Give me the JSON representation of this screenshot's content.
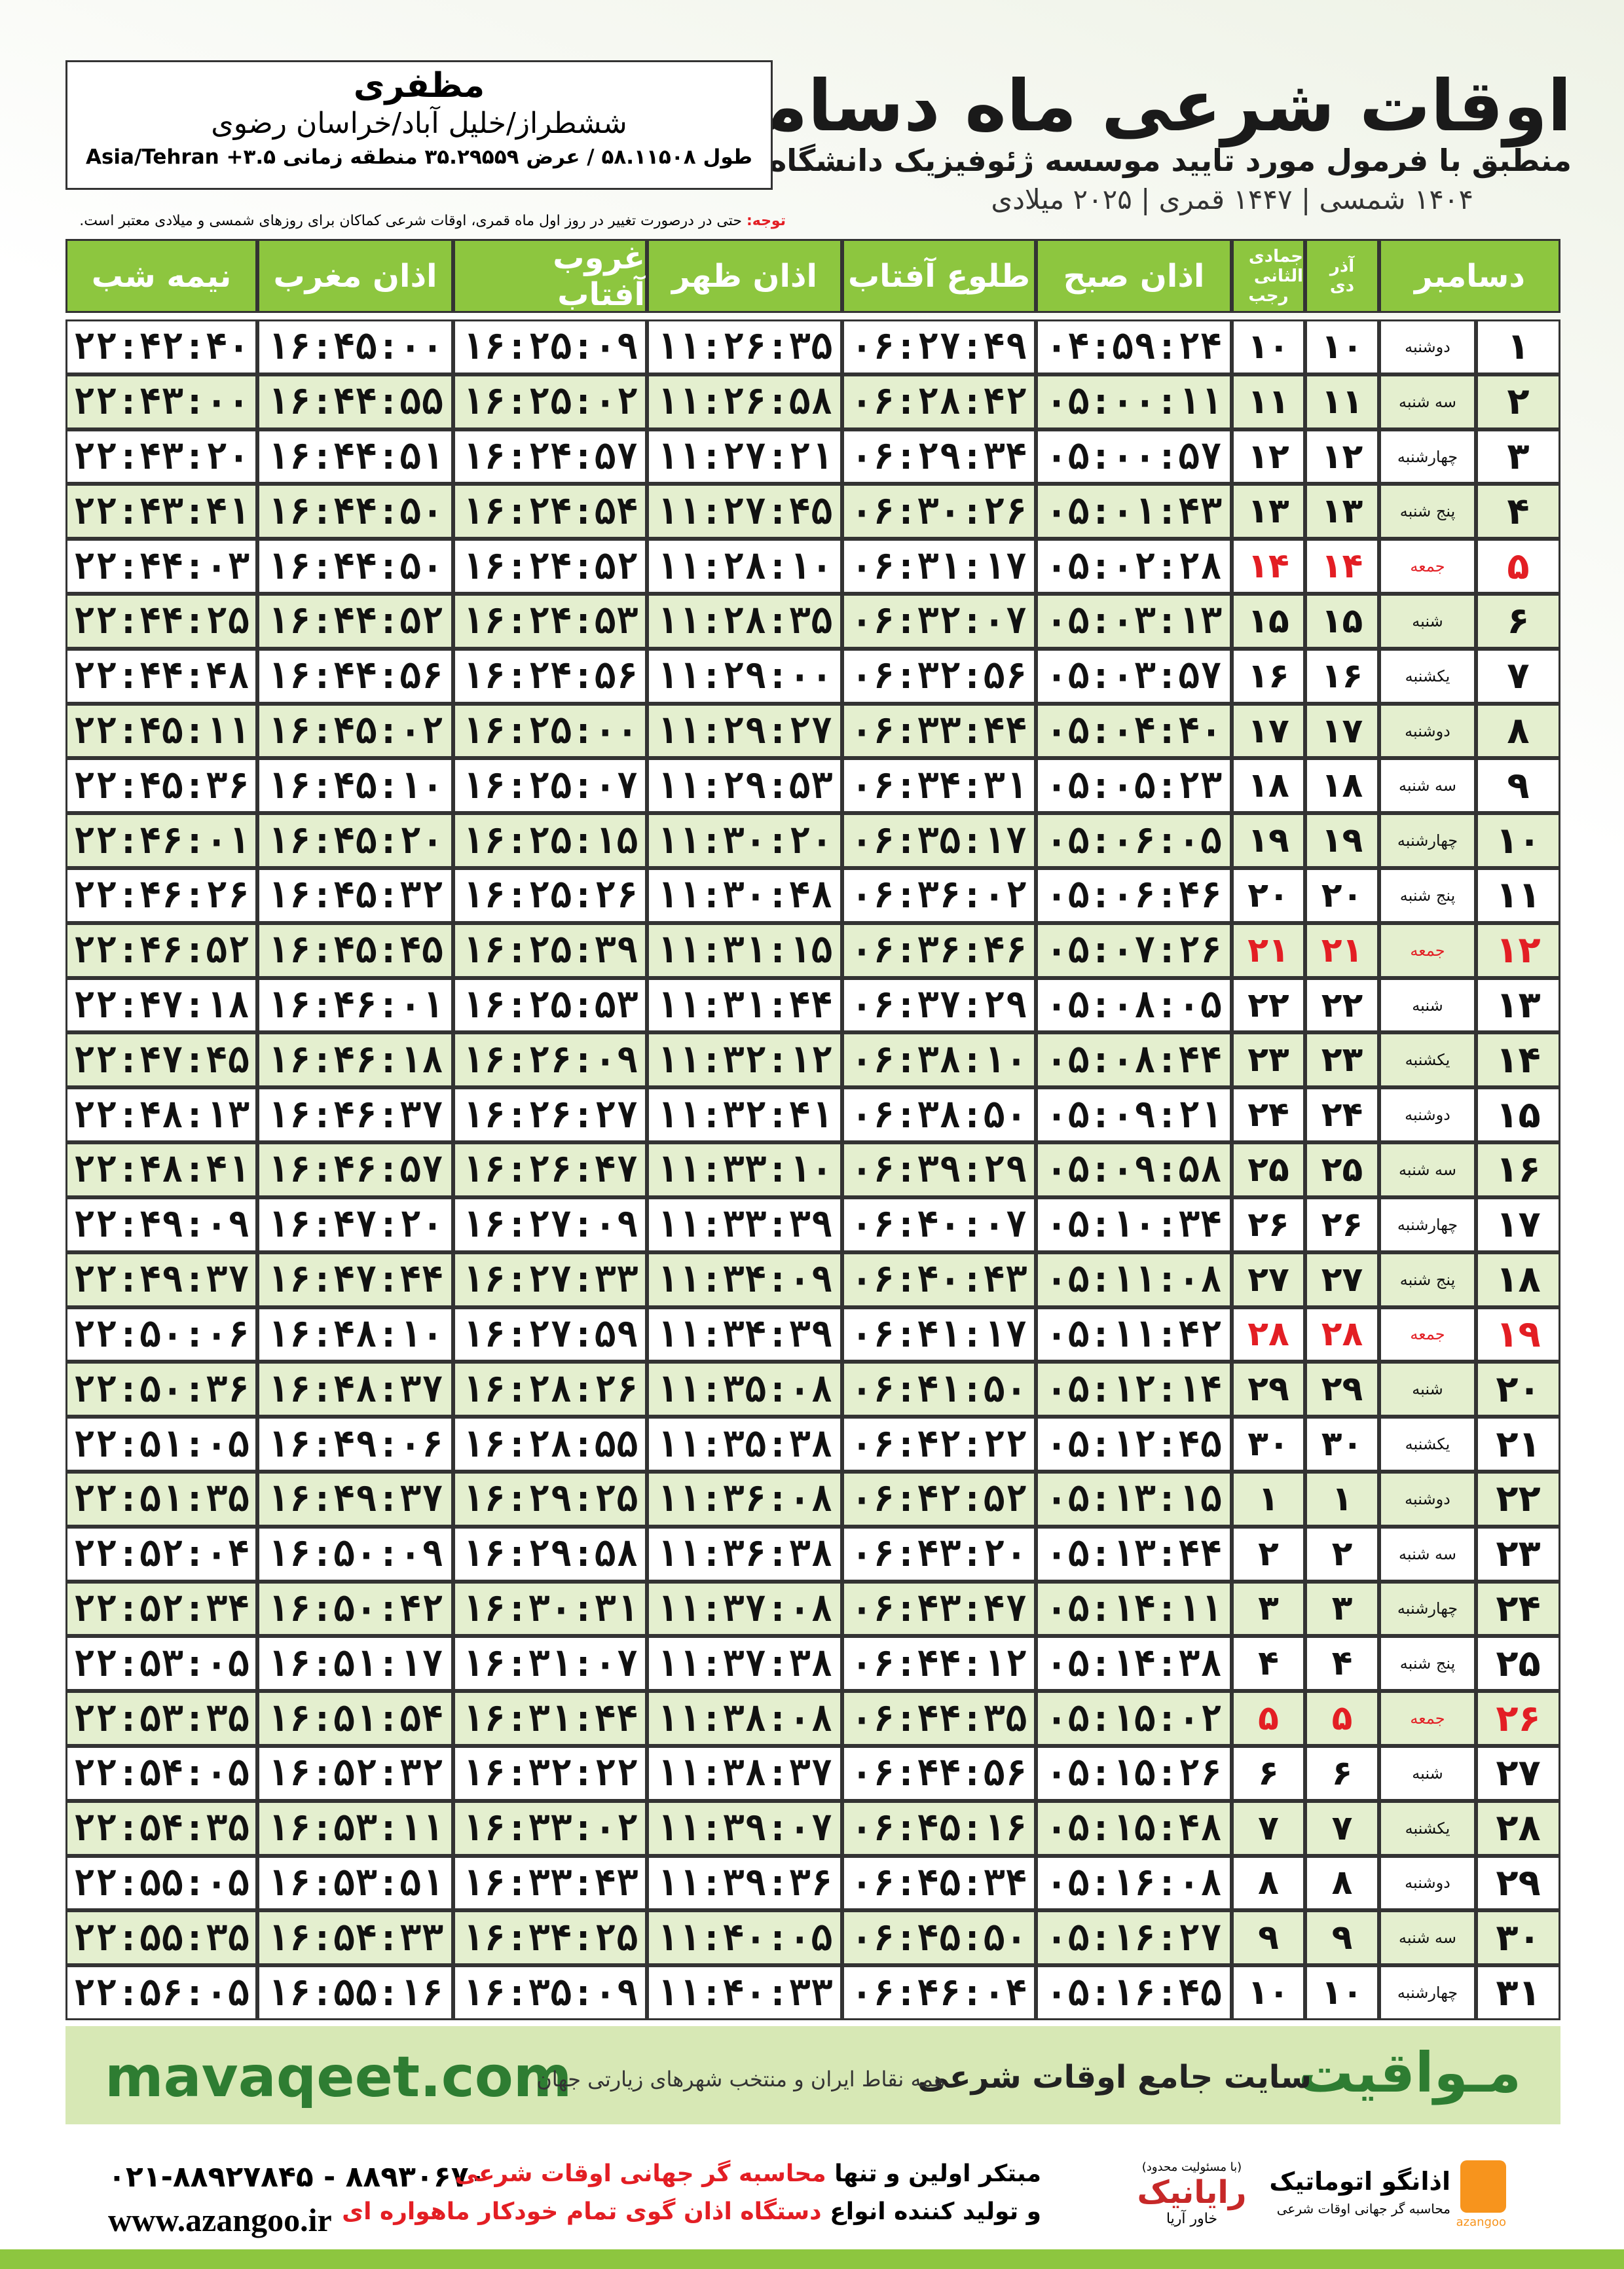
{
  "header": {
    "title": "اوقات شرعی ماه دسامبر",
    "subtitle": "منطبق با فرمول مورد تایید موسسه ژئوفیزیک دانشگاه تهران",
    "dates": "۱۴۰۴ شمسی | ۱۴۴۷ قمری | ۲۰۲۵ میلادی"
  },
  "location": {
    "city": "مظفری",
    "region": "ششطراز/خلیل آباد/خراسان رضوی",
    "coords": "طول ۵۸.۱۱۵۰۸ / عرض ۳۵.۲۹۵۵۹ منطقه زمانی ۳.۵+ Asia/Tehran"
  },
  "note": {
    "label": "توجه:",
    "text": "حتی در درصورت تغییر در روز اول ماه قمری، اوقات شرعی کماکان برای روزهای شمسی و میلادی معتبر است."
  },
  "table": {
    "columns": {
      "month": "دسامبر",
      "shamsi": [
        "آذر",
        "دی"
      ],
      "hijri": [
        "جمادی الثانی",
        "رجب"
      ],
      "times": [
        "اذان صبح",
        "طلوع آفتاب",
        "اذان ظهر",
        "غروب آفتاب",
        "اذان مغرب",
        "نیمه شب"
      ]
    },
    "rows": [
      {
        "day": "۱",
        "weekday": "دوشنبه",
        "shamsi": "۱۰",
        "hijri": "۱۰",
        "times": [
          "۰۴:۵۹:۲۴",
          "۰۶:۲۷:۴۹",
          "۱۱:۲۶:۳۵",
          "۱۶:۲۵:۰۹",
          "۱۶:۴۵:۰۰",
          "۲۲:۴۲:۴۰"
        ]
      },
      {
        "day": "۲",
        "weekday": "سه شنبه",
        "shamsi": "۱۱",
        "hijri": "۱۱",
        "times": [
          "۰۵:۰۰:۱۱",
          "۰۶:۲۸:۴۲",
          "۱۱:۲۶:۵۸",
          "۱۶:۲۵:۰۲",
          "۱۶:۴۴:۵۵",
          "۲۲:۴۳:۰۰"
        ]
      },
      {
        "day": "۳",
        "weekday": "چهارشنبه",
        "shamsi": "۱۲",
        "hijri": "۱۲",
        "times": [
          "۰۵:۰۰:۵۷",
          "۰۶:۲۹:۳۴",
          "۱۱:۲۷:۲۱",
          "۱۶:۲۴:۵۷",
          "۱۶:۴۴:۵۱",
          "۲۲:۴۳:۲۰"
        ]
      },
      {
        "day": "۴",
        "weekday": "پنج شنبه",
        "shamsi": "۱۳",
        "hijri": "۱۳",
        "times": [
          "۰۵:۰۱:۴۳",
          "۰۶:۳۰:۲۶",
          "۱۱:۲۷:۴۵",
          "۱۶:۲۴:۵۴",
          "۱۶:۴۴:۵۰",
          "۲۲:۴۳:۴۱"
        ]
      },
      {
        "day": "۵",
        "weekday": "جمعه",
        "shamsi": "۱۴",
        "hijri": "۱۴",
        "color": "#e31e24",
        "times": [
          "۰۵:۰۲:۲۸",
          "۰۶:۳۱:۱۷",
          "۱۱:۲۸:۱۰",
          "۱۶:۲۴:۵۲",
          "۱۶:۴۴:۵۰",
          "۲۲:۴۴:۰۳"
        ]
      },
      {
        "day": "۶",
        "weekday": "شنبه",
        "shamsi": "۱۵",
        "hijri": "۱۵",
        "times": [
          "۰۵:۰۳:۱۳",
          "۰۶:۳۲:۰۷",
          "۱۱:۲۸:۳۵",
          "۱۶:۲۴:۵۳",
          "۱۶:۴۴:۵۲",
          "۲۲:۴۴:۲۵"
        ]
      },
      {
        "day": "۷",
        "weekday": "یکشنبه",
        "shamsi": "۱۶",
        "hijri": "۱۶",
        "times": [
          "۰۵:۰۳:۵۷",
          "۰۶:۳۲:۵۶",
          "۱۱:۲۹:۰۰",
          "۱۶:۲۴:۵۶",
          "۱۶:۴۴:۵۶",
          "۲۲:۴۴:۴۸"
        ]
      },
      {
        "day": "۸",
        "weekday": "دوشنبه",
        "shamsi": "۱۷",
        "hijri": "۱۷",
        "times": [
          "۰۵:۰۴:۴۰",
          "۰۶:۳۳:۴۴",
          "۱۱:۲۹:۲۷",
          "۱۶:۲۵:۰۰",
          "۱۶:۴۵:۰۲",
          "۲۲:۴۵:۱۱"
        ]
      },
      {
        "day": "۹",
        "weekday": "سه شنبه",
        "shamsi": "۱۸",
        "hijri": "۱۸",
        "times": [
          "۰۵:۰۵:۲۳",
          "۰۶:۳۴:۳۱",
          "۱۱:۲۹:۵۳",
          "۱۶:۲۵:۰۷",
          "۱۶:۴۵:۱۰",
          "۲۲:۴۵:۳۶"
        ]
      },
      {
        "day": "۱۰",
        "weekday": "چهارشنبه",
        "shamsi": "۱۹",
        "hijri": "۱۹",
        "times": [
          "۰۵:۰۶:۰۵",
          "۰۶:۳۵:۱۷",
          "۱۱:۳۰:۲۰",
          "۱۶:۲۵:۱۵",
          "۱۶:۴۵:۲۰",
          "۲۲:۴۶:۰۱"
        ]
      },
      {
        "day": "۱۱",
        "weekday": "پنج شنبه",
        "shamsi": "۲۰",
        "hijri": "۲۰",
        "times": [
          "۰۵:۰۶:۴۶",
          "۰۶:۳۶:۰۲",
          "۱۱:۳۰:۴۸",
          "۱۶:۲۵:۲۶",
          "۱۶:۴۵:۳۲",
          "۲۲:۴۶:۲۶"
        ]
      },
      {
        "day": "۱۲",
        "weekday": "جمعه",
        "shamsi": "۲۱",
        "hijri": "۲۱",
        "color": "#e31e24",
        "times": [
          "۰۵:۰۷:۲۶",
          "۰۶:۳۶:۴۶",
          "۱۱:۳۱:۱۵",
          "۱۶:۲۵:۳۹",
          "۱۶:۴۵:۴۵",
          "۲۲:۴۶:۵۲"
        ]
      },
      {
        "day": "۱۳",
        "weekday": "شنبه",
        "shamsi": "۲۲",
        "hijri": "۲۲",
        "times": [
          "۰۵:۰۸:۰۵",
          "۰۶:۳۷:۲۹",
          "۱۱:۳۱:۴۴",
          "۱۶:۲۵:۵۳",
          "۱۶:۴۶:۰۱",
          "۲۲:۴۷:۱۸"
        ]
      },
      {
        "day": "۱۴",
        "weekday": "یکشنبه",
        "shamsi": "۲۳",
        "hijri": "۲۳",
        "times": [
          "۰۵:۰۸:۴۴",
          "۰۶:۳۸:۱۰",
          "۱۱:۳۲:۱۲",
          "۱۶:۲۶:۰۹",
          "۱۶:۴۶:۱۸",
          "۲۲:۴۷:۴۵"
        ]
      },
      {
        "day": "۱۵",
        "weekday": "دوشنبه",
        "shamsi": "۲۴",
        "hijri": "۲۴",
        "times": [
          "۰۵:۰۹:۲۱",
          "۰۶:۳۸:۵۰",
          "۱۱:۳۲:۴۱",
          "۱۶:۲۶:۲۷",
          "۱۶:۴۶:۳۷",
          "۲۲:۴۸:۱۳"
        ]
      },
      {
        "day": "۱۶",
        "weekday": "سه شنبه",
        "shamsi": "۲۵",
        "hijri": "۲۵",
        "times": [
          "۰۵:۰۹:۵۸",
          "۰۶:۳۹:۲۹",
          "۱۱:۳۳:۱۰",
          "۱۶:۲۶:۴۷",
          "۱۶:۴۶:۵۷",
          "۲۲:۴۸:۴۱"
        ]
      },
      {
        "day": "۱۷",
        "weekday": "چهارشنبه",
        "shamsi": "۲۶",
        "hijri": "۲۶",
        "times": [
          "۰۵:۱۰:۳۴",
          "۰۶:۴۰:۰۷",
          "۱۱:۳۳:۳۹",
          "۱۶:۲۷:۰۹",
          "۱۶:۴۷:۲۰",
          "۲۲:۴۹:۰۹"
        ]
      },
      {
        "day": "۱۸",
        "weekday": "پنج شنبه",
        "shamsi": "۲۷",
        "hijri": "۲۷",
        "times": [
          "۰۵:۱۱:۰۸",
          "۰۶:۴۰:۴۳",
          "۱۱:۳۴:۰۹",
          "۱۶:۲۷:۳۳",
          "۱۶:۴۷:۴۴",
          "۲۲:۴۹:۳۷"
        ]
      },
      {
        "day": "۱۹",
        "weekday": "جمعه",
        "shamsi": "۲۸",
        "hijri": "۲۸",
        "color": "#e31e24",
        "times": [
          "۰۵:۱۱:۴۲",
          "۰۶:۴۱:۱۷",
          "۱۱:۳۴:۳۹",
          "۱۶:۲۷:۵۹",
          "۱۶:۴۸:۱۰",
          "۲۲:۵۰:۰۶"
        ]
      },
      {
        "day": "۲۰",
        "weekday": "شنبه",
        "shamsi": "۲۹",
        "hijri": "۲۹",
        "times": [
          "۰۵:۱۲:۱۴",
          "۰۶:۴۱:۵۰",
          "۱۱:۳۵:۰۸",
          "۱۶:۲۸:۲۶",
          "۱۶:۴۸:۳۷",
          "۲۲:۵۰:۳۶"
        ]
      },
      {
        "day": "۲۱",
        "weekday": "یکشنبه",
        "shamsi": "۳۰",
        "hijri": "۳۰",
        "times": [
          "۰۵:۱۲:۴۵",
          "۰۶:۴۲:۲۲",
          "۱۱:۳۵:۳۸",
          "۱۶:۲۸:۵۵",
          "۱۶:۴۹:۰۶",
          "۲۲:۵۱:۰۵"
        ]
      },
      {
        "day": "۲۲",
        "weekday": "دوشنبه",
        "shamsi": "۱",
        "hijri": "۱",
        "times": [
          "۰۵:۱۳:۱۵",
          "۰۶:۴۲:۵۲",
          "۱۱:۳۶:۰۸",
          "۱۶:۲۹:۲۵",
          "۱۶:۴۹:۳۷",
          "۲۲:۵۱:۳۵"
        ]
      },
      {
        "day": "۲۳",
        "weekday": "سه شنبه",
        "shamsi": "۲",
        "hijri": "۲",
        "times": [
          "۰۵:۱۳:۴۴",
          "۰۶:۴۳:۲۰",
          "۱۱:۳۶:۳۸",
          "۱۶:۲۹:۵۸",
          "۱۶:۵۰:۰۹",
          "۲۲:۵۲:۰۴"
        ]
      },
      {
        "day": "۲۴",
        "weekday": "چهارشنبه",
        "shamsi": "۳",
        "hijri": "۳",
        "times": [
          "۰۵:۱۴:۱۱",
          "۰۶:۴۳:۴۷",
          "۱۱:۳۷:۰۸",
          "۱۶:۳۰:۳۱",
          "۱۶:۵۰:۴۲",
          "۲۲:۵۲:۳۴"
        ]
      },
      {
        "day": "۲۵",
        "weekday": "پنج شنبه",
        "shamsi": "۴",
        "hijri": "۴",
        "times": [
          "۰۵:۱۴:۳۸",
          "۰۶:۴۴:۱۲",
          "۱۱:۳۷:۳۸",
          "۱۶:۳۱:۰۷",
          "۱۶:۵۱:۱۷",
          "۲۲:۵۳:۰۵"
        ]
      },
      {
        "day": "۲۶",
        "weekday": "جمعه",
        "shamsi": "۵",
        "hijri": "۵",
        "color": "#e31e24",
        "times": [
          "۰۵:۱۵:۰۲",
          "۰۶:۴۴:۳۵",
          "۱۱:۳۸:۰۸",
          "۱۶:۳۱:۴۴",
          "۱۶:۵۱:۵۴",
          "۲۲:۵۳:۳۵"
        ]
      },
      {
        "day": "۲۷",
        "weekday": "شنبه",
        "shamsi": "۶",
        "hijri": "۶",
        "times": [
          "۰۵:۱۵:۲۶",
          "۰۶:۴۴:۵۶",
          "۱۱:۳۸:۳۷",
          "۱۶:۳۲:۲۲",
          "۱۶:۵۲:۳۲",
          "۲۲:۵۴:۰۵"
        ]
      },
      {
        "day": "۲۸",
        "weekday": "یکشنبه",
        "shamsi": "۷",
        "hijri": "۷",
        "times": [
          "۰۵:۱۵:۴۸",
          "۰۶:۴۵:۱۶",
          "۱۱:۳۹:۰۷",
          "۱۶:۳۳:۰۲",
          "۱۶:۵۳:۱۱",
          "۲۲:۵۴:۳۵"
        ]
      },
      {
        "day": "۲۹",
        "weekday": "دوشنبه",
        "shamsi": "۸",
        "hijri": "۸",
        "times": [
          "۰۵:۱۶:۰۸",
          "۰۶:۴۵:۳۴",
          "۱۱:۳۹:۳۶",
          "۱۶:۳۳:۴۳",
          "۱۶:۵۳:۵۱",
          "۲۲:۵۵:۰۵"
        ]
      },
      {
        "day": "۳۰",
        "weekday": "سه شنبه",
        "shamsi": "۹",
        "hijri": "۹",
        "times": [
          "۰۵:۱۶:۲۷",
          "۰۶:۴۵:۵۰",
          "۱۱:۴۰:۰۵",
          "۱۶:۳۴:۲۵",
          "۱۶:۵۴:۳۳",
          "۲۲:۵۵:۳۵"
        ]
      },
      {
        "day": "۳۱",
        "weekday": "چهارشنبه",
        "shamsi": "۱۰",
        "hijri": "۱۰",
        "times": [
          "۰۵:۱۶:۴۵",
          "۰۶:۴۶:۰۴",
          "۱۱:۴۰:۳۳",
          "۱۶:۳۵:۰۹",
          "۱۶:۵۵:۱۶",
          "۲۲:۵۶:۰۵"
        ]
      }
    ]
  },
  "banner": {
    "site": "mavaqeet.com",
    "brand": "مـواقیت",
    "tagline": "سایت جامع اوقات شرعی",
    "sub": "همه نقاط ایران و منتخب شهرهای زیارتی جهان"
  },
  "footer": {
    "phone": "۰۲۱-۸۸۹۲۷۸۴۵ - ۸۸۹۳۰۶۷۰",
    "web": "www.azangoo.ir",
    "line1": [
      "مبتکر اولین و تنها ",
      "محاسبه گر جهانی اوقات شرعی"
    ],
    "line2": [
      "و تولید کننده انواع ",
      "دستگاه اذان گوی تمام خودکار ماهواره ای"
    ],
    "logo1": {
      "name": "رایانیک",
      "sub": "خاور آریا",
      "note": "(با مسئولیت محدود)"
    },
    "logo2": {
      "name": "اذانگو اتوماتیک",
      "sub": "محاسبه گر جهانی اوقات شرعی",
      "mark": "azangoo"
    }
  }
}
